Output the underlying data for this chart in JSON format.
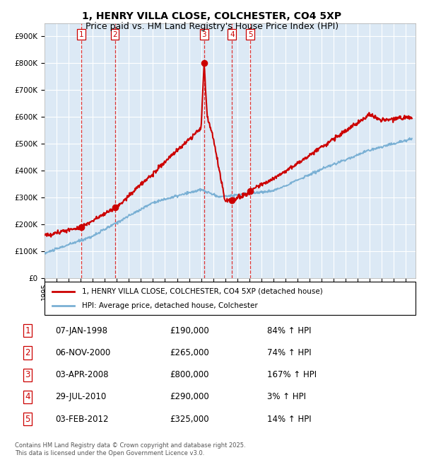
{
  "title": "1, HENRY VILLA CLOSE, COLCHESTER, CO4 5XP",
  "subtitle": "Price paid vs. HM Land Registry's House Price Index (HPI)",
  "title_fontsize": 10,
  "subtitle_fontsize": 9,
  "plot_bg_color": "#dce9f5",
  "grid_color": "#ffffff",
  "ylim": [
    0,
    950000
  ],
  "yticks": [
    0,
    100000,
    200000,
    300000,
    400000,
    500000,
    600000,
    700000,
    800000,
    900000
  ],
  "ytick_labels": [
    "£0",
    "£100K",
    "£200K",
    "£300K",
    "£400K",
    "£500K",
    "£600K",
    "£700K",
    "£800K",
    "£900K"
  ],
  "sale_dates_num": [
    1998.04,
    2000.84,
    2008.25,
    2010.57,
    2012.09
  ],
  "sale_prices": [
    190000,
    265000,
    800000,
    290000,
    325000
  ],
  "sale_labels": [
    "1",
    "2",
    "3",
    "4",
    "5"
  ],
  "sale_dates_str": [
    "07-JAN-1998",
    "06-NOV-2000",
    "03-APR-2008",
    "29-JUL-2010",
    "03-FEB-2012"
  ],
  "row_prices": [
    "£190,000",
    "£265,000",
    "£800,000",
    "£290,000",
    "£325,000"
  ],
  "row_hpi": [
    "84% ↑ HPI",
    "74% ↑ HPI",
    "167% ↑ HPI",
    "3% ↑ HPI",
    "14% ↑ HPI"
  ],
  "hpi_label": "HPI: Average price, detached house, Colchester",
  "property_label": "1, HENRY VILLA CLOSE, COLCHESTER, CO4 5XP (detached house)",
  "footer": "Contains HM Land Registry data © Crown copyright and database right 2025.\nThis data is licensed under the Open Government Licence v3.0.",
  "red_line_color": "#cc0000",
  "blue_line_color": "#7ab0d4",
  "marker_color": "#cc0000",
  "dashed_line_color": "#dd3333",
  "box_color": "#cc0000",
  "xlim_start": 1995.0,
  "xlim_end": 2025.8
}
